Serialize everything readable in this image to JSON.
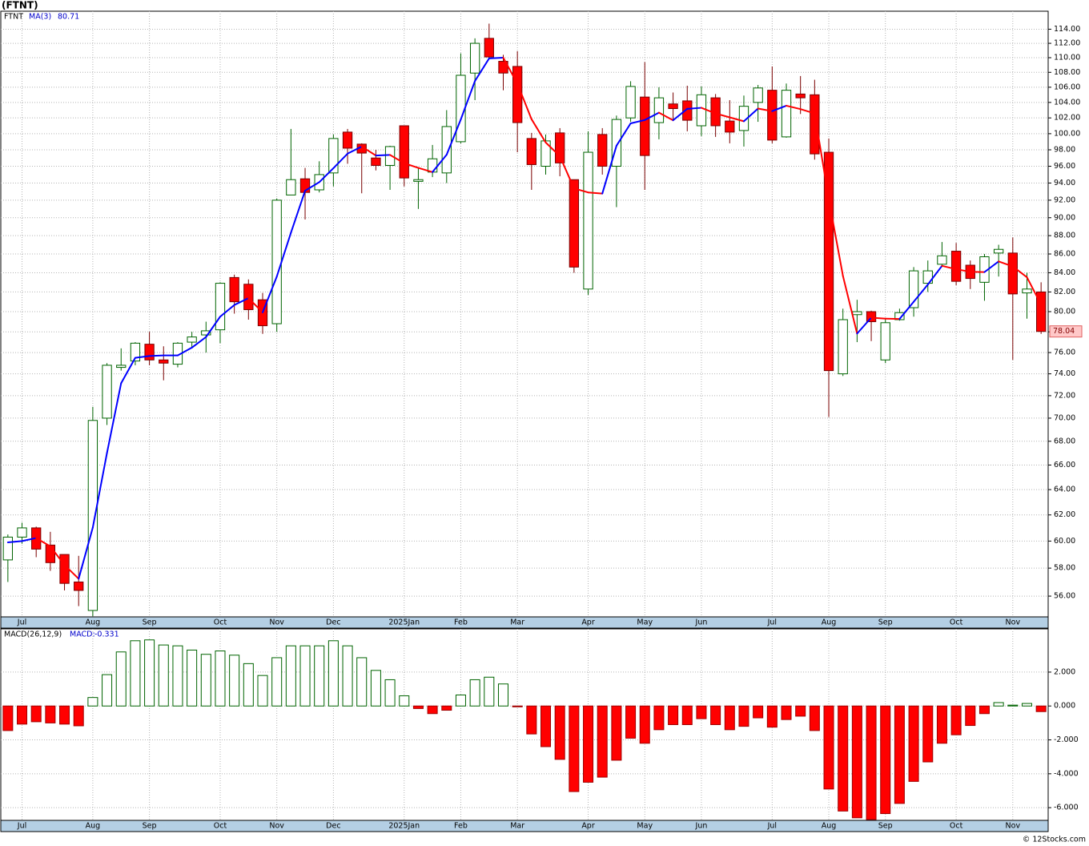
{
  "chart_data": [
    {
      "type": "candlestick",
      "title": "(FTNT)",
      "ticker": "FTNT",
      "categories": [
        null,
        "Jul",
        null,
        null,
        null,
        null,
        "Aug",
        null,
        null,
        null,
        "Sep",
        null,
        null,
        null,
        null,
        "Oct",
        null,
        null,
        null,
        "Nov",
        null,
        null,
        null,
        "Dec",
        null,
        null,
        null,
        null,
        "2025Jan",
        null,
        null,
        null,
        "Feb",
        null,
        null,
        null,
        "Mar",
        null,
        null,
        null,
        null,
        "Apr",
        null,
        null,
        null,
        "May",
        null,
        null,
        null,
        "Jun",
        null,
        null,
        null,
        null,
        "Jul",
        null,
        null,
        null,
        "Aug",
        null,
        null,
        null,
        "Sep",
        null,
        null,
        null,
        null,
        "Oct",
        null,
        null,
        null,
        "Nov",
        null,
        null
      ],
      "open": [
        58.6,
        60.3,
        61.0,
        59.7,
        59.0,
        57.0,
        55.0,
        70.0,
        74.6,
        75.2,
        76.8,
        75.3,
        74.9,
        77.0,
        77.7,
        78.2,
        83.5,
        82.8,
        81.2,
        78.8,
        92.6,
        94.5,
        93.2,
        95.2,
        100.2,
        98.7,
        97.0,
        96.1,
        101.0,
        94.2,
        95.3,
        95.2,
        99.0,
        107.9,
        112.7,
        109.5,
        108.8,
        99.4,
        96.0,
        100.1,
        94.4,
        82.3,
        99.9,
        96.0,
        102.0,
        104.7,
        101.4,
        103.8,
        104.2,
        101.0,
        104.6,
        101.6,
        100.4,
        104.0,
        105.6,
        99.6,
        105.1,
        105.0,
        97.7,
        74.0,
        79.7,
        80.0,
        75.3,
        79.2,
        80.4,
        82.9,
        84.9,
        86.3,
        84.8,
        83.0,
        86.1,
        86.1,
        81.9,
        82.0
      ],
      "high": [
        60.5,
        61.4,
        61.1,
        60.7,
        59.0,
        58.9,
        71.0,
        75.0,
        76.4,
        77.0,
        78.0,
        76.6,
        77.0,
        78.0,
        79.0,
        83.0,
        83.8,
        83.3,
        81.9,
        92.2,
        100.6,
        95.8,
        96.6,
        99.9,
        100.6,
        98.8,
        98.0,
        98.5,
        101.0,
        95.9,
        98.6,
        103.0,
        110.6,
        112.7,
        114.8,
        110.4,
        110.9,
        100.1,
        99.9,
        100.7,
        94.4,
        100.3,
        100.7,
        102.3,
        106.8,
        109.4,
        106.0,
        105.3,
        106.2,
        106.1,
        105.1,
        104.3,
        104.9,
        106.3,
        108.8,
        106.5,
        107.5,
        107.0,
        99.4,
        80.3,
        81.2,
        80.1,
        79.3,
        80.3,
        84.6,
        85.3,
        87.3,
        87.2,
        85.3,
        86.0,
        87.0,
        87.8,
        84.0,
        83.0
      ],
      "low": [
        57.0,
        59.8,
        58.8,
        57.8,
        56.4,
        55.3,
        54.6,
        69.4,
        74.3,
        74.8,
        74.8,
        73.4,
        74.6,
        76.5,
        76.0,
        76.9,
        79.8,
        79.2,
        77.8,
        78.0,
        92.6,
        89.8,
        92.9,
        93.6,
        96.3,
        92.8,
        95.5,
        93.2,
        93.6,
        91.0,
        94.7,
        94.0,
        98.8,
        104.3,
        109.9,
        105.6,
        97.7,
        93.2,
        95.0,
        94.8,
        84.0,
        81.7,
        95.0,
        91.2,
        101.5,
        93.2,
        99.3,
        101.6,
        100.3,
        99.7,
        99.6,
        98.8,
        98.4,
        101.5,
        98.8,
        99.5,
        102.5,
        96.8,
        70.1,
        73.8,
        77.0,
        77.1,
        75.0,
        79.1,
        79.5,
        82.0,
        84.6,
        82.7,
        82.3,
        81.1,
        83.6,
        75.3,
        79.3,
        77.8
      ],
      "close": [
        60.3,
        61.0,
        59.4,
        58.4,
        56.9,
        56.4,
        69.8,
        74.8,
        74.8,
        76.9,
        75.3,
        75.0,
        76.9,
        77.5,
        78.1,
        82.9,
        81.0,
        80.2,
        78.6,
        92.0,
        94.4,
        92.9,
        95.0,
        99.4,
        98.2,
        97.6,
        96.1,
        98.4,
        94.6,
        94.4,
        96.9,
        100.9,
        107.6,
        112.0,
        110.1,
        107.9,
        101.4,
        96.2,
        99.1,
        96.4,
        84.6,
        97.7,
        96.0,
        101.8,
        106.1,
        97.3,
        104.6,
        103.2,
        101.7,
        105.0,
        101.0,
        100.2,
        103.5,
        105.9,
        99.2,
        105.6,
        104.6,
        97.5,
        74.3,
        79.2,
        80.0,
        79.0,
        78.9,
        79.9,
        84.2,
        84.2,
        85.8,
        83.1,
        83.4,
        85.7,
        86.5,
        81.8,
        82.3,
        78.04
      ],
      "up_color": "#006400",
      "down_color": "#ff0000",
      "ma": {
        "name": "MA(3)",
        "up_color": "#0000ff",
        "down_color": "#ff0000",
        "values": [
          59.9,
          60.0,
          60.23,
          59.6,
          58.23,
          57.23,
          61.03,
          67.0,
          73.13,
          75.5,
          75.67,
          75.73,
          75.73,
          76.47,
          77.5,
          79.5,
          80.67,
          81.37,
          79.93,
          83.6,
          88.33,
          93.1,
          94.1,
          95.77,
          97.53,
          98.4,
          97.3,
          97.37,
          96.37,
          95.8,
          95.3,
          97.4,
          101.8,
          106.83,
          109.9,
          110.0,
          106.47,
          101.83,
          98.9,
          97.23,
          93.37,
          92.9,
          92.77,
          98.5,
          101.3,
          101.73,
          102.67,
          101.7,
          103.17,
          103.3,
          102.57,
          102.07,
          101.57,
          103.2,
          102.87,
          103.57,
          103.13,
          102.57,
          92.13,
          83.67,
          77.83,
          79.4,
          79.3,
          79.27,
          81.0,
          82.77,
          84.73,
          84.37,
          84.1,
          84.07,
          85.2,
          84.67,
          83.53,
          80.71
        ]
      },
      "log_scale": true,
      "grid": true,
      "ylim": [
        54.56,
        116.6
      ],
      "yticks": [
        {
          "value": 56,
          "label": "56.00"
        },
        {
          "value": 58,
          "label": "58.00"
        },
        {
          "value": 60,
          "label": "60.00"
        },
        {
          "value": 62,
          "label": "62.00"
        },
        {
          "value": 64,
          "label": "64.00"
        },
        {
          "value": 66,
          "label": "66.00"
        },
        {
          "value": 68,
          "label": "68.00"
        },
        {
          "value": 70,
          "label": "70.00"
        },
        {
          "value": 72,
          "label": "72.00"
        },
        {
          "value": 74,
          "label": "74.00"
        },
        {
          "value": 76,
          "label": "76.00"
        },
        {
          "value": 78,
          "label": "78.00"
        },
        {
          "value": 80,
          "label": "80.00"
        },
        {
          "value": 82,
          "label": "82.00"
        },
        {
          "value": 84,
          "label": "84.00"
        },
        {
          "value": 86,
          "label": "86.00"
        },
        {
          "value": 88,
          "label": "88.00"
        },
        {
          "value": 90,
          "label": "90.00"
        },
        {
          "value": 92,
          "label": "92.00"
        },
        {
          "value": 94,
          "label": "94.00"
        },
        {
          "value": 96,
          "label": "96.00"
        },
        {
          "value": 98,
          "label": "98.00"
        },
        {
          "value": 100,
          "label": "100.00"
        },
        {
          "value": 102,
          "label": "102.00"
        },
        {
          "value": 104,
          "label": "104.00"
        },
        {
          "value": 106,
          "label": "106.00"
        },
        {
          "value": 108,
          "label": "108.00"
        },
        {
          "value": 110,
          "label": "110.00"
        },
        {
          "value": 112,
          "label": "112.00"
        },
        {
          "value": 114,
          "label": "114.00"
        }
      ]
    },
    {
      "type": "bar",
      "title": "MACD(26,12,9)",
      "categories": [
        null,
        "Jul",
        null,
        null,
        null,
        null,
        "Aug",
        null,
        null,
        null,
        "Sep",
        null,
        null,
        null,
        null,
        "Oct",
        null,
        null,
        null,
        "Nov",
        null,
        null,
        null,
        "Dec",
        null,
        null,
        null,
        null,
        "2025Jan",
        null,
        null,
        null,
        "Feb",
        null,
        null,
        null,
        "Mar",
        null,
        null,
        null,
        null,
        "Apr",
        null,
        null,
        null,
        "May",
        null,
        null,
        null,
        "Jun",
        null,
        null,
        null,
        null,
        "Jul",
        null,
        null,
        null,
        "Aug",
        null,
        null,
        null,
        "Sep",
        null,
        null,
        null,
        null,
        "Oct",
        null,
        null,
        null,
        "Nov",
        null,
        null
      ],
      "series": [
        {
          "name": "MACD:",
          "up_color": "#006400",
          "down_color": "#ff0000",
          "values": [
            -1.45,
            -1.07,
            -0.93,
            -1.0,
            -1.07,
            -1.17,
            0.5,
            1.85,
            3.19,
            3.85,
            3.9,
            3.6,
            3.55,
            3.3,
            3.05,
            3.25,
            3.0,
            2.5,
            1.8,
            2.85,
            3.55,
            3.55,
            3.55,
            3.85,
            3.55,
            2.85,
            2.1,
            1.55,
            0.6,
            -0.15,
            -0.45,
            -0.25,
            0.65,
            1.55,
            1.7,
            1.3,
            -0.05,
            -1.65,
            -2.4,
            -3.15,
            -5.05,
            -4.5,
            -4.2,
            -3.2,
            -1.9,
            -2.2,
            -1.4,
            -1.1,
            -1.1,
            -0.75,
            -1.1,
            -1.4,
            -1.2,
            -0.7,
            -1.25,
            -0.8,
            -0.6,
            -1.45,
            -4.9,
            -6.2,
            -6.6,
            -6.7,
            -6.35,
            -5.75,
            -4.45,
            -3.3,
            -2.2,
            -1.7,
            -1.15,
            -0.45,
            0.2,
            0.05,
            0.15,
            -0.331
          ]
        }
      ],
      "grid": true,
      "ylim": [
        -6.75,
        4.55
      ],
      "yticks": [
        {
          "value": 2,
          "label": "2.000"
        },
        {
          "value": 0,
          "label": "0.000"
        },
        {
          "value": -2,
          "label": "-2.000"
        },
        {
          "value": -4,
          "label": "-4.000"
        },
        {
          "value": -6,
          "label": "-6.000"
        }
      ]
    }
  ],
  "credit": "© 12Stocks.com"
}
